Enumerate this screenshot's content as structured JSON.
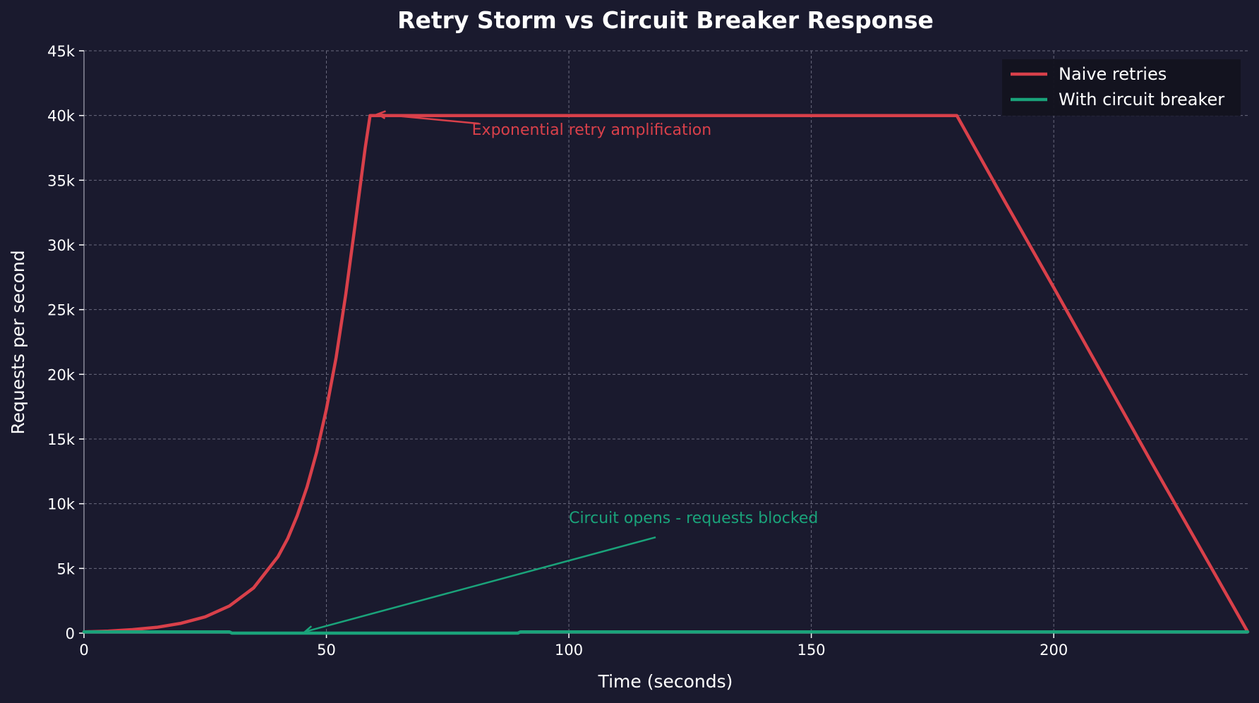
{
  "chart_data": {
    "type": "line",
    "title": "Retry Storm vs Circuit Breaker Response",
    "xlabel": "Time (seconds)",
    "ylabel": "Requests per second",
    "xlim": [
      0,
      240
    ],
    "ylim": [
      0,
      45000
    ],
    "x_ticks": [
      0,
      50,
      100,
      150,
      200
    ],
    "x_tick_labels": [
      "0",
      "50",
      "100",
      "150",
      "200"
    ],
    "y_ticks": [
      0,
      5000,
      10000,
      15000,
      20000,
      25000,
      30000,
      35000,
      40000,
      45000
    ],
    "y_tick_labels": [
      "0",
      "5k",
      "10k",
      "15k",
      "20k",
      "25k",
      "30k",
      "35k",
      "40k",
      "45k"
    ],
    "grid": true,
    "legend_position": "top-right",
    "series": [
      {
        "name": "Naive retries",
        "color": "#d9404a",
        "x": [
          0,
          5,
          10,
          15,
          20,
          25,
          30,
          35,
          40,
          42,
          44,
          46,
          48,
          50,
          52,
          54,
          56,
          58,
          59,
          60,
          70,
          80,
          90,
          100,
          110,
          120,
          130,
          140,
          150,
          160,
          170,
          180,
          190,
          200,
          210,
          220,
          230,
          240
        ],
        "y": [
          100,
          160,
          270,
          450,
          760,
          1260,
          2100,
          3500,
          5900,
          7300,
          9100,
          11300,
          14000,
          17300,
          21300,
          26200,
          31800,
          37500,
          40000,
          40000,
          40000,
          40000,
          40000,
          40000,
          40000,
          40000,
          40000,
          40000,
          40000,
          40000,
          40000,
          40000,
          33300,
          26700,
          20000,
          13300,
          6700,
          100
        ]
      },
      {
        "name": "With circuit breaker",
        "color": "#1aa37a",
        "x": [
          0,
          30,
          30.5,
          89.5,
          90,
          240
        ],
        "y": [
          100,
          100,
          0,
          0,
          100,
          100
        ]
      }
    ],
    "annotations": [
      {
        "text": "Exponential retry amplification",
        "color": "#d9404a",
        "xy": [
          60,
          40000
        ],
        "xytext": [
          80,
          38500
        ]
      },
      {
        "text": "Circuit opens - requests blocked",
        "color": "#1aa37a",
        "xy": [
          45,
          0
        ],
        "xytext": [
          100,
          8500
        ]
      }
    ]
  }
}
